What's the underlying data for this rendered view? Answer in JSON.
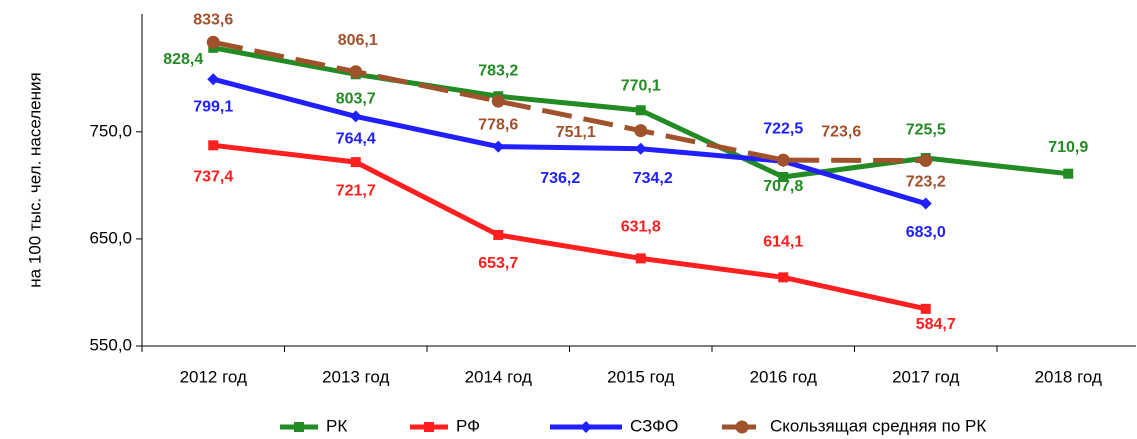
{
  "chart_data": {
    "type": "line",
    "y_label": "на 100 тыс. чел. населения",
    "categories": [
      "2012 год",
      "2013 год",
      "2014 год",
      "2015 год",
      "2016 год",
      "2017 год",
      "2018 год"
    ],
    "series": [
      {
        "name": "РК",
        "color": "#238b23",
        "marker": "square",
        "dashed": false,
        "values": [
          828.4,
          803.7,
          783.2,
          770.1,
          707.8,
          725.5,
          710.9
        ],
        "value_labels": [
          "828,4",
          "803,7",
          "783,2",
          "770,1",
          "707,8",
          "725,5",
          "710,9"
        ]
      },
      {
        "name": "РФ",
        "color": "#ff1f1f",
        "marker": "square",
        "dashed": false,
        "values": [
          737.4,
          721.7,
          653.7,
          631.8,
          614.1,
          584.7,
          null
        ],
        "value_labels": [
          "737,4",
          "721,7",
          "653,7",
          "631,8",
          "614,1",
          "584,7",
          null
        ]
      },
      {
        "name": "СЗФО",
        "color": "#1f1fff",
        "marker": "diamond",
        "dashed": false,
        "values": [
          799.1,
          764.4,
          736.2,
          734.2,
          722.5,
          683.0,
          null
        ],
        "value_labels": [
          "799,1",
          "764,4",
          "736,2",
          "734,2",
          "722,5",
          "683,0",
          null
        ]
      },
      {
        "name": "Скользящая средняя по РК",
        "color": "#a0522d",
        "marker": "circle",
        "dashed": true,
        "values": [
          833.6,
          806.1,
          778.6,
          751.1,
          723.6,
          723.2,
          null
        ],
        "value_labels": [
          "833,6",
          "806,1",
          "778,6",
          "751,1",
          "723,6",
          "723,2",
          null
        ]
      }
    ],
    "ylim": [
      550,
      860
    ],
    "yticks": [
      {
        "value": 550,
        "label": "550,0"
      },
      {
        "value": 650,
        "label": "650,0"
      },
      {
        "value": 750,
        "label": "750,0"
      }
    ],
    "grid": false,
    "legend": "bottom"
  }
}
